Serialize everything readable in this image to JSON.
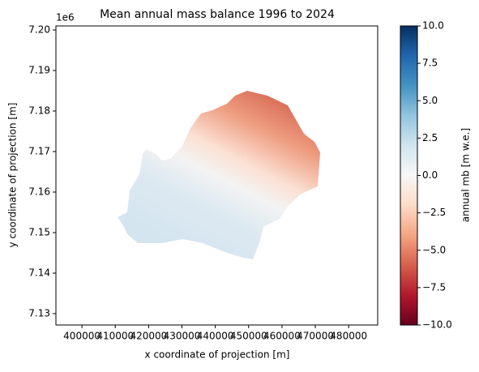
{
  "chart_data": {
    "type": "raster",
    "title": "Mean annual mass balance 1996 to 2024",
    "x_label": "x coordinate of projection [m]",
    "y_label": "y coordinate of projection [m]",
    "y_offset_label": "1e6",
    "xlim": [
      392200,
      488700
    ],
    "ylim": [
      7.1272,
      7.201
    ],
    "xticks": [
      400000,
      410000,
      420000,
      430000,
      440000,
      450000,
      460000,
      470000,
      480000
    ],
    "yticks": [
      7.13,
      7.14,
      7.15,
      7.16,
      7.17,
      7.18,
      7.19,
      {
        "value": 7.2,
        "label": "7.20"
      }
    ],
    "colorbar": {
      "label": "annual mb [m w.e.]",
      "clim": [
        -10,
        10
      ],
      "ticks": [
        {
          "value": -10,
          "label": "−10.0"
        },
        {
          "value": -7.5,
          "label": "−7.5"
        },
        {
          "value": -5,
          "label": "−5.0"
        },
        {
          "value": -2.5,
          "label": "−2.5"
        },
        {
          "value": 0,
          "label": "0.0"
        },
        2.5,
        {
          "value": 5,
          "label": "5.0"
        },
        7.5,
        {
          "value": 10,
          "label": "10.0"
        }
      ],
      "colormap": [
        "#67001f",
        "#b2182b",
        "#d6604d",
        "#f4a582",
        "#fddbc7",
        "#f7f7f7",
        "#d1e5f0",
        "#92c5de",
        "#4393c3",
        "#2166ac",
        "#053061"
      ]
    }
  }
}
